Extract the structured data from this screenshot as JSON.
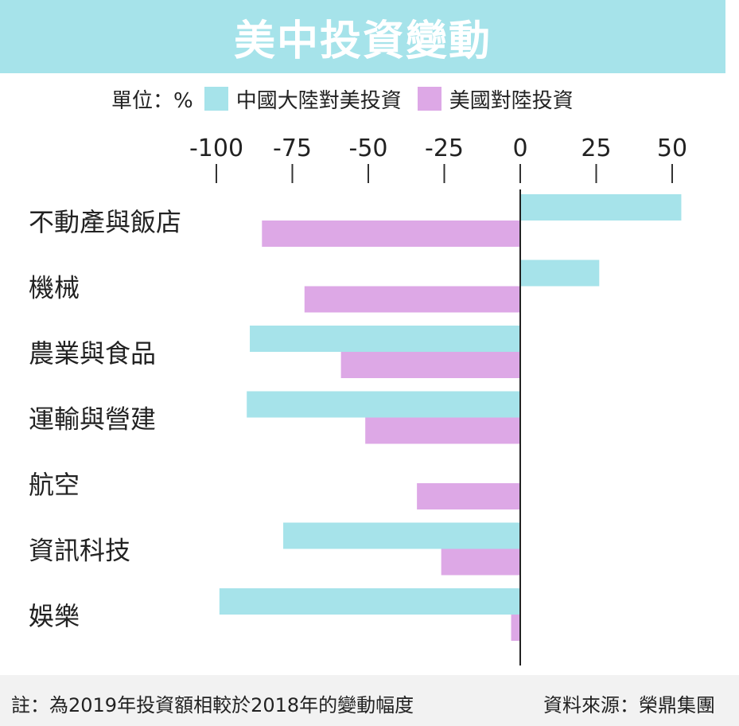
{
  "title": "美中投資變動",
  "legend": {
    "unit": "單位：%",
    "items": [
      {
        "label": "中國大陸對美投資",
        "color": "#a6e3ea"
      },
      {
        "label": "美國對陸投資",
        "color": "#dda8e6"
      }
    ]
  },
  "chart_data": {
    "type": "bar",
    "orientation": "horizontal",
    "categories": [
      "不動產與飯店",
      "機械",
      "農業與食品",
      "運輸與營建",
      "航空",
      "資訊科技",
      "娛樂"
    ],
    "series": [
      {
        "name": "中國大陸對美投資",
        "color": "#a6e3ea",
        "values": [
          53,
          26,
          -89,
          -90,
          0,
          -78,
          -99
        ]
      },
      {
        "name": "美國對陸投資",
        "color": "#dda8e6",
        "values": [
          -85,
          -71,
          -59,
          -51,
          -34,
          -26,
          -3
        ]
      }
    ],
    "xlim": [
      -100,
      50
    ],
    "xticks": [
      -100,
      -75,
      -50,
      -25,
      0,
      25,
      50
    ],
    "xtick_labels": [
      "-100",
      "-75",
      "-50",
      "-25",
      "0",
      "25",
      "50"
    ],
    "axis_position": "top"
  },
  "footer": {
    "note": "註：為2019年投資額相較於2018年的變動幅度",
    "source": "資料來源：榮鼎集團"
  }
}
